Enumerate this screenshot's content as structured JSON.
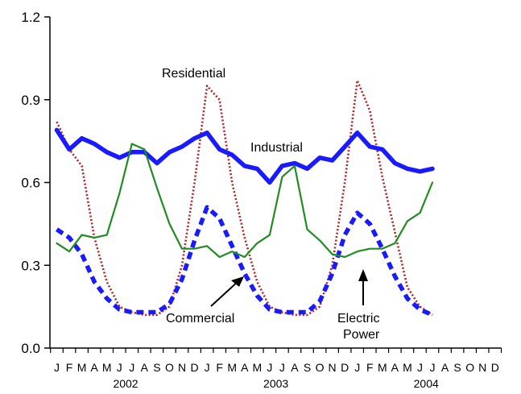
{
  "chart_data": {
    "type": "line",
    "title": "",
    "xlabel": "",
    "ylabel": "",
    "ylim": [
      0,
      1.2
    ],
    "yticks": [
      "0.0",
      "0.3",
      "0.6",
      "0.9",
      "1.2"
    ],
    "month_letters": [
      "J",
      "F",
      "M",
      "A",
      "M",
      "J",
      "J",
      "A",
      "S",
      "O",
      "N",
      "D",
      "J",
      "F",
      "M",
      "A",
      "M",
      "J",
      "J",
      "A",
      "S",
      "O",
      "N",
      "D",
      "J",
      "F",
      "M",
      "A",
      "M",
      "J",
      "J",
      "A",
      "S",
      "O",
      "N",
      "D"
    ],
    "year_labels": [
      "2002",
      "2003",
      "2004"
    ],
    "series": [
      {
        "name": "Residential",
        "color": "#b22222",
        "dash": "dotted",
        "values": [
          0.82,
          0.72,
          0.66,
          0.4,
          0.24,
          0.15,
          0.13,
          0.12,
          0.12,
          0.15,
          0.3,
          0.6,
          0.95,
          0.9,
          0.6,
          0.4,
          0.24,
          0.15,
          0.13,
          0.12,
          0.12,
          0.15,
          0.3,
          0.6,
          0.97,
          0.86,
          0.62,
          0.42,
          0.22,
          0.15,
          0.12
        ]
      },
      {
        "name": "Industrial",
        "color": "#1a1aff",
        "dash": "solid-thick",
        "values": [
          0.79,
          0.72,
          0.76,
          0.74,
          0.71,
          0.69,
          0.71,
          0.71,
          0.67,
          0.71,
          0.73,
          0.76,
          0.78,
          0.72,
          0.7,
          0.66,
          0.65,
          0.6,
          0.66,
          0.67,
          0.65,
          0.69,
          0.68,
          0.73,
          0.78,
          0.73,
          0.72,
          0.67,
          0.65,
          0.64,
          0.65
        ]
      },
      {
        "name": "Commercial",
        "color": "#1a1aff",
        "dash": "dashed",
        "values": [
          0.43,
          0.4,
          0.34,
          0.24,
          0.18,
          0.14,
          0.13,
          0.13,
          0.13,
          0.16,
          0.25,
          0.39,
          0.51,
          0.47,
          0.37,
          0.27,
          0.19,
          0.14,
          0.13,
          0.13,
          0.13,
          0.17,
          0.27,
          0.41,
          0.49,
          0.45,
          0.36,
          0.26,
          0.18,
          0.14,
          0.12
        ]
      },
      {
        "name": "Electric Power",
        "color": "#228b22",
        "dash": "solid",
        "values": [
          0.38,
          0.35,
          0.41,
          0.4,
          0.41,
          0.56,
          0.74,
          0.72,
          0.58,
          0.45,
          0.36,
          0.36,
          0.37,
          0.33,
          0.35,
          0.33,
          0.38,
          0.41,
          0.62,
          0.66,
          0.43,
          0.39,
          0.34,
          0.33,
          0.35,
          0.36,
          0.36,
          0.38,
          0.46,
          0.49,
          0.6
        ]
      }
    ],
    "annotations": [
      {
        "text": "Residential"
      },
      {
        "text": "Industrial"
      },
      {
        "text": "Commercial"
      },
      {
        "text": "Electric"
      },
      {
        "text": "Power"
      }
    ]
  }
}
